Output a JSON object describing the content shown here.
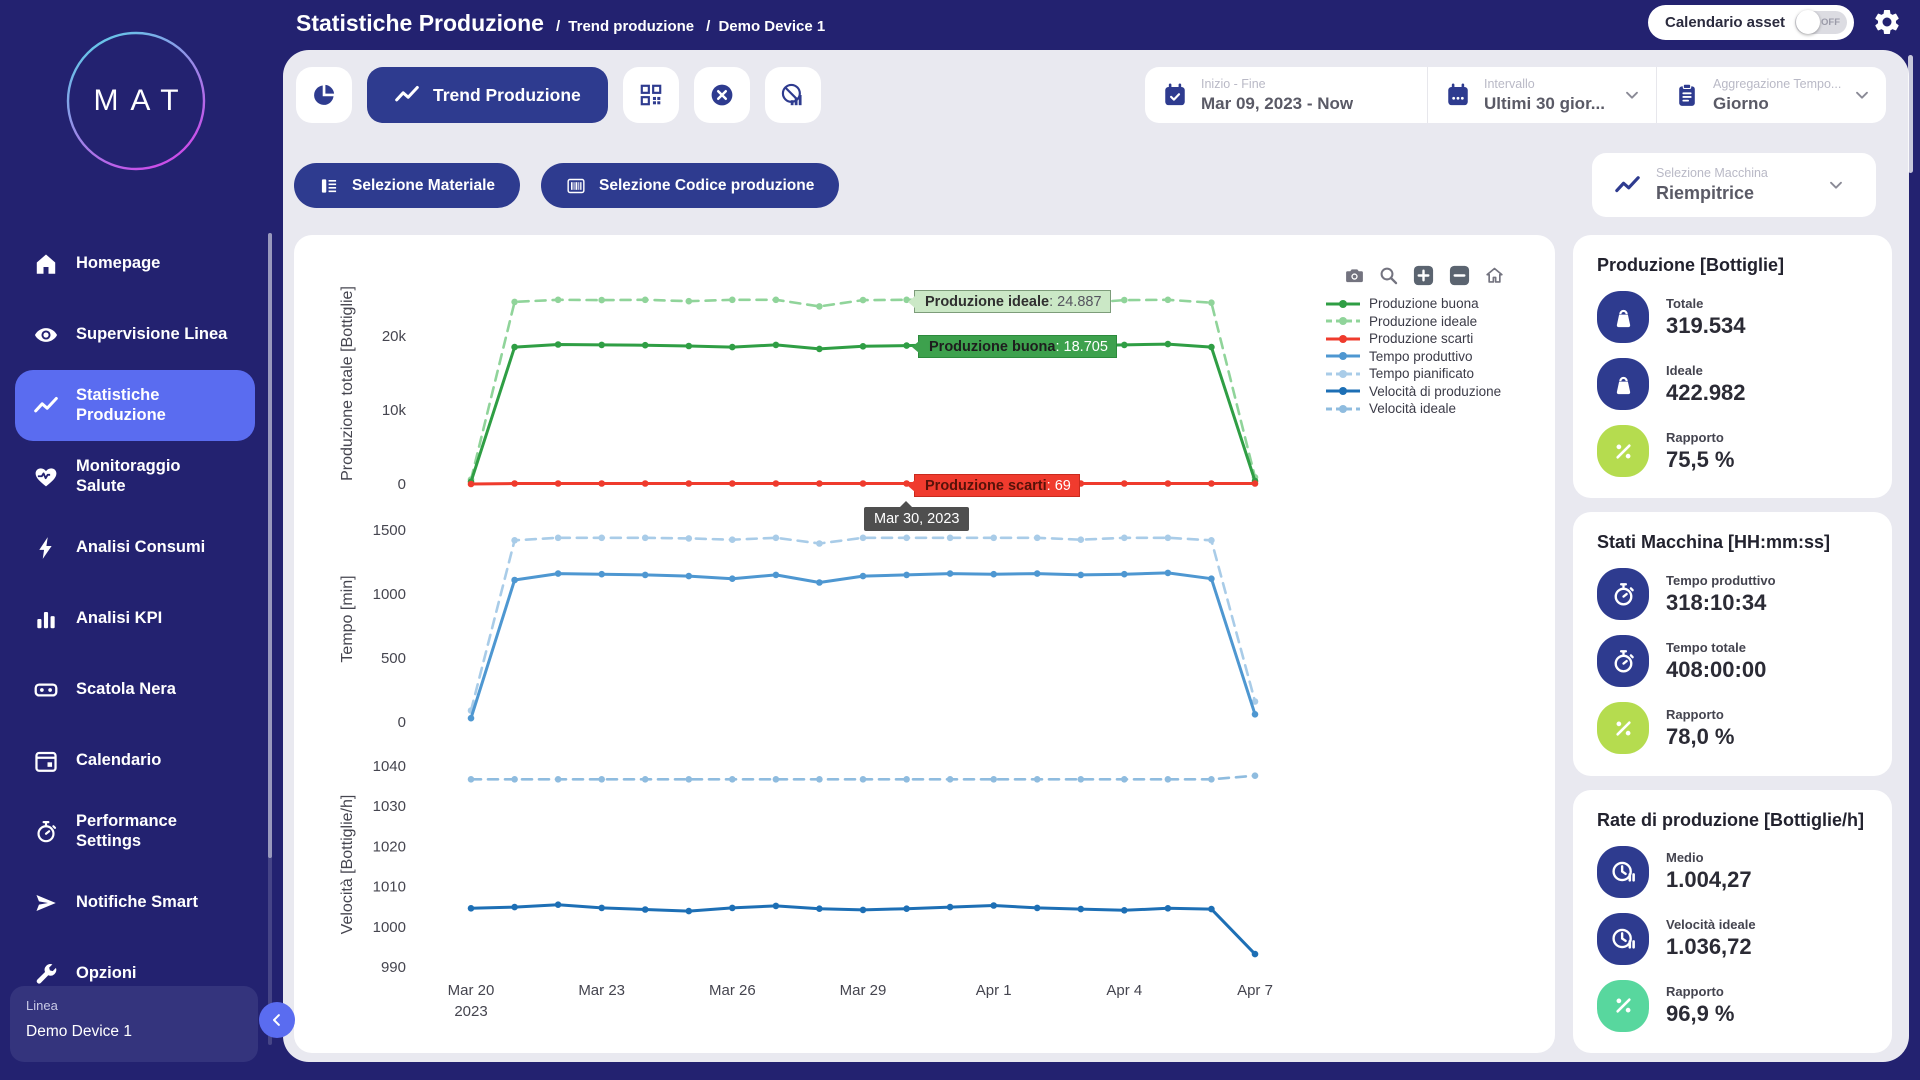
{
  "header": {
    "title": "Statistiche Produzione",
    "breadcrumbs": [
      "Trend produzione",
      "Demo Device 1"
    ],
    "calendar_toggle": {
      "label": "Calendario asset",
      "state": "OFF"
    }
  },
  "sidebar": {
    "logo": "MAT",
    "items": [
      {
        "slug": "homepage",
        "label": "Homepage",
        "icon": "home-icon",
        "active": false
      },
      {
        "slug": "supervisione-linea",
        "label": "Supervisione Linea",
        "icon": "eye-icon",
        "active": false
      },
      {
        "slug": "statistiche-produzione",
        "label": "Statistiche Produzione",
        "icon": "trend-icon",
        "active": true
      },
      {
        "slug": "monitoraggio-salute",
        "label": "Monitoraggio Salute",
        "icon": "heart-pulse-icon",
        "active": false
      },
      {
        "slug": "analisi-consumi",
        "label": "Analisi Consumi",
        "icon": "bolt-icon",
        "active": false
      },
      {
        "slug": "analisi-kpi",
        "label": "Analisi KPI",
        "icon": "bar-chart-icon",
        "active": false
      },
      {
        "slug": "scatola-nera",
        "label": "Scatola Nera",
        "icon": "blackbox-icon",
        "active": false
      },
      {
        "slug": "calendario",
        "label": "Calendario",
        "icon": "calendar-icon",
        "active": false
      },
      {
        "slug": "performance-settings",
        "label": "Performance Settings",
        "icon": "timer-icon",
        "active": false
      },
      {
        "slug": "notifiche-smart",
        "label": "Notifiche Smart",
        "icon": "send-icon",
        "active": false
      },
      {
        "slug": "opzioni",
        "label": "Opzioni",
        "icon": "wrench-icon",
        "active": false
      }
    ],
    "device_card": {
      "label": "Linea",
      "value": "Demo Device 1"
    }
  },
  "toolbar": {
    "buttons": [
      {
        "slug": "pie-view",
        "icon": "pie-icon",
        "label": "",
        "active": false
      },
      {
        "slug": "trend-produzione",
        "icon": "trend-icon",
        "label": "Trend Produzione",
        "active": true
      },
      {
        "slug": "qr-view",
        "icon": "qr-icon",
        "label": "",
        "active": false
      },
      {
        "slug": "close-view",
        "icon": "x-circle-icon",
        "label": "",
        "active": false
      },
      {
        "slug": "chart-off-view",
        "icon": "chart-off-icon",
        "label": "",
        "active": false
      }
    ],
    "filters": [
      {
        "slug": "inizio-fine",
        "icon": "calendar-check-icon",
        "label": "Inizio - Fine",
        "value": "Mar 09, 2023 - Now",
        "chevron": false
      },
      {
        "slug": "intervallo",
        "icon": "calendar-dots-icon",
        "label": "Intervallo",
        "value": "Ultimi 30 gior...",
        "chevron": true
      },
      {
        "slug": "aggregazione-tempo",
        "icon": "clipboard-icon",
        "label": "Aggregazione Tempo...",
        "value": "Giorno",
        "chevron": true
      }
    ]
  },
  "selection": {
    "material_button": "Selezione Materiale",
    "code_button": "Selezione Codice produzione",
    "machine": {
      "label": "Selezione Macchina",
      "value": "Riempitrice"
    }
  },
  "colors": {
    "navy_bg": "#232270",
    "button_navy": "#2e3b8f",
    "active_item": "#5a6cf0",
    "content_bg": "#e9e9f0",
    "lime": "#b5dc4f",
    "teal": "#58d79e",
    "green": "#2f9e44",
    "light_green": "#90d49a",
    "red": "#ef3b2d",
    "blue": "#4e97d1",
    "light_blue": "#a9cce8",
    "dark_blue": "#1d6fb5",
    "pale_blue": "#8fbcdf"
  },
  "chart_data": {
    "type": "line",
    "x_count": 19,
    "x_start": "Mar 20, 2023",
    "x_end": "Apr 7, 2023",
    "xticks": [
      {
        "day": 0,
        "label": "Mar 20",
        "sub": "2023"
      },
      {
        "day": 3,
        "label": "Mar 23"
      },
      {
        "day": 6,
        "label": "Mar 26"
      },
      {
        "day": 9,
        "label": "Mar 29"
      },
      {
        "day": 12,
        "label": "Apr 1"
      },
      {
        "day": 15,
        "label": "Apr 4"
      },
      {
        "day": 18,
        "label": "Apr 7"
      }
    ],
    "subplots": [
      {
        "ylabel": "Produzione totale [Bottiglie]",
        "ylim": [
          0,
          27160
        ],
        "yticks": [
          {
            "v": 0,
            "label": "0"
          },
          {
            "v": 10000,
            "label": "10k"
          },
          {
            "v": 20000,
            "label": "20k"
          }
        ],
        "series": [
          {
            "name": "Produzione ideale",
            "color": "#90d49a",
            "dash": true,
            "values": [
              600,
              24600,
              24887,
              24850,
              24887,
              24700,
              24887,
              24887,
              24000,
              24850,
              24887,
              24887,
              24850,
              24887,
              24400,
              24850,
              24887,
              24500,
              900
            ]
          },
          {
            "name": "Produzione buona",
            "color": "#2f9e44",
            "dash": false,
            "values": [
              300,
              18500,
              18850,
              18800,
              18750,
              18650,
              18500,
              18800,
              18250,
              18600,
              18705,
              18850,
              18800,
              18850,
              18700,
              18800,
              18900,
              18500,
              400
            ]
          },
          {
            "name": "Produzione scarti",
            "color": "#ef3b2d",
            "dash": false,
            "values": [
              0,
              69,
              69,
              69,
              69,
              69,
              69,
              69,
              69,
              69,
              69,
              69,
              69,
              69,
              69,
              69,
              69,
              69,
              69
            ]
          }
        ]
      },
      {
        "ylabel": "Tempo [min]",
        "ylim": [
          0,
          1610
        ],
        "yticks": [
          {
            "v": 0,
            "label": "0"
          },
          {
            "v": 500,
            "label": "500"
          },
          {
            "v": 1000,
            "label": "1000"
          },
          {
            "v": 1500,
            "label": "1500"
          }
        ],
        "series": [
          {
            "name": "Tempo pianificato",
            "color": "#a9cce8",
            "dash": true,
            "values": [
              90,
              1420,
              1440,
              1440,
              1440,
              1435,
              1425,
              1440,
              1395,
              1440,
              1440,
              1440,
              1440,
              1440,
              1425,
              1440,
              1440,
              1420,
              160
            ]
          },
          {
            "name": "Tempo produttivo",
            "color": "#4e97d1",
            "dash": false,
            "values": [
              30,
              1110,
              1160,
              1155,
              1150,
              1140,
              1120,
              1150,
              1090,
              1140,
              1150,
              1160,
              1155,
              1160,
              1150,
              1155,
              1165,
              1120,
              60
            ]
          }
        ]
      },
      {
        "ylabel": "Velocità [Bottiglie/h]",
        "ylim": [
          988,
          1043
        ],
        "yticks": [
          {
            "v": 990,
            "label": "990"
          },
          {
            "v": 1000,
            "label": "1000"
          },
          {
            "v": 1010,
            "label": "1010"
          },
          {
            "v": 1020,
            "label": "1020"
          },
          {
            "v": 1030,
            "label": "1030"
          },
          {
            "v": 1040,
            "label": "1040"
          }
        ],
        "series": [
          {
            "name": "Velocità ideale",
            "color": "#8fbcdf",
            "dash": true,
            "values": [
              1036.7,
              1036.7,
              1036.7,
              1036.7,
              1036.7,
              1036.7,
              1036.7,
              1036.7,
              1036.7,
              1036.7,
              1036.7,
              1036.7,
              1036.7,
              1036.7,
              1036.7,
              1036.7,
              1036.7,
              1036.7,
              1037.6
            ]
          },
          {
            "name": "Velocità di produzione",
            "color": "#1d6fb5",
            "dash": false,
            "values": [
              1004.6,
              1004.9,
              1005.5,
              1004.7,
              1004.3,
              1003.9,
              1004.7,
              1005.2,
              1004.5,
              1004.2,
              1004.5,
              1004.9,
              1005.3,
              1004.7,
              1004.4,
              1004.1,
              1004.6,
              1004.4,
              993.2
            ]
          }
        ]
      }
    ],
    "legend": [
      {
        "label": "Produzione buona",
        "color": "#2f9e44",
        "dash": false
      },
      {
        "label": "Produzione ideale",
        "color": "#90d49a",
        "dash": true
      },
      {
        "label": "Produzione scarti",
        "color": "#ef3b2d",
        "dash": false
      },
      {
        "label": "Tempo produttivo",
        "color": "#4e97d1",
        "dash": false
      },
      {
        "label": "Tempo pianificato",
        "color": "#a9cce8",
        "dash": true
      },
      {
        "label": "Velocità di produzione",
        "color": "#1d6fb5",
        "dash": false
      },
      {
        "label": "Velocità ideale",
        "color": "#8fbcdf",
        "dash": true
      }
    ],
    "modebar": [
      "camera-icon",
      "zoom-icon",
      "zoom-in-icon",
      "zoom-out-icon",
      "autoscale-home-icon"
    ],
    "tooltips": {
      "x_day": 10,
      "date_label": "Mar 30, 2023",
      "items": [
        {
          "label": "Produzione ideale",
          "value": "24.887"
        },
        {
          "label": "Produzione buona",
          "value": "18.705"
        },
        {
          "label": "Produzione scarti",
          "value": "69"
        }
      ]
    }
  },
  "kpi_cards": [
    {
      "title": "Produzione [Bottiglie]",
      "rows": [
        {
          "icon": "weight-icon",
          "bg": "#2e3b8f",
          "label": "Totale",
          "value": "319.534"
        },
        {
          "icon": "weight-icon",
          "bg": "#2e3b8f",
          "label": "Ideale",
          "value": "422.982"
        },
        {
          "icon": "percent-icon",
          "bg": "#b5dc4f",
          "label": "Rapporto",
          "value": "75,5 %"
        }
      ]
    },
    {
      "title": "Stati Macchina [HH:mm:ss]",
      "rows": [
        {
          "icon": "stopwatch-icon",
          "bg": "#2e3b8f",
          "label": "Tempo produttivo",
          "value": "318:10:34"
        },
        {
          "icon": "stopwatch-icon",
          "bg": "#2e3b8f",
          "label": "Tempo totale",
          "value": "408:00:00"
        },
        {
          "icon": "percent-icon",
          "bg": "#b5dc4f",
          "label": "Rapporto",
          "value": "78,0 %"
        }
      ]
    },
    {
      "title": "Rate di produzione [Bottiglie/h]",
      "rows": [
        {
          "icon": "clock-pause-icon",
          "bg": "#2e3b8f",
          "label": "Medio",
          "value": "1.004,27"
        },
        {
          "icon": "clock-pause-icon",
          "bg": "#2e3b8f",
          "label": "Velocità ideale",
          "value": "1.036,72"
        },
        {
          "icon": "percent-icon",
          "bg": "#58d79e",
          "label": "Rapporto",
          "value": "96,9 %"
        }
      ]
    }
  ]
}
